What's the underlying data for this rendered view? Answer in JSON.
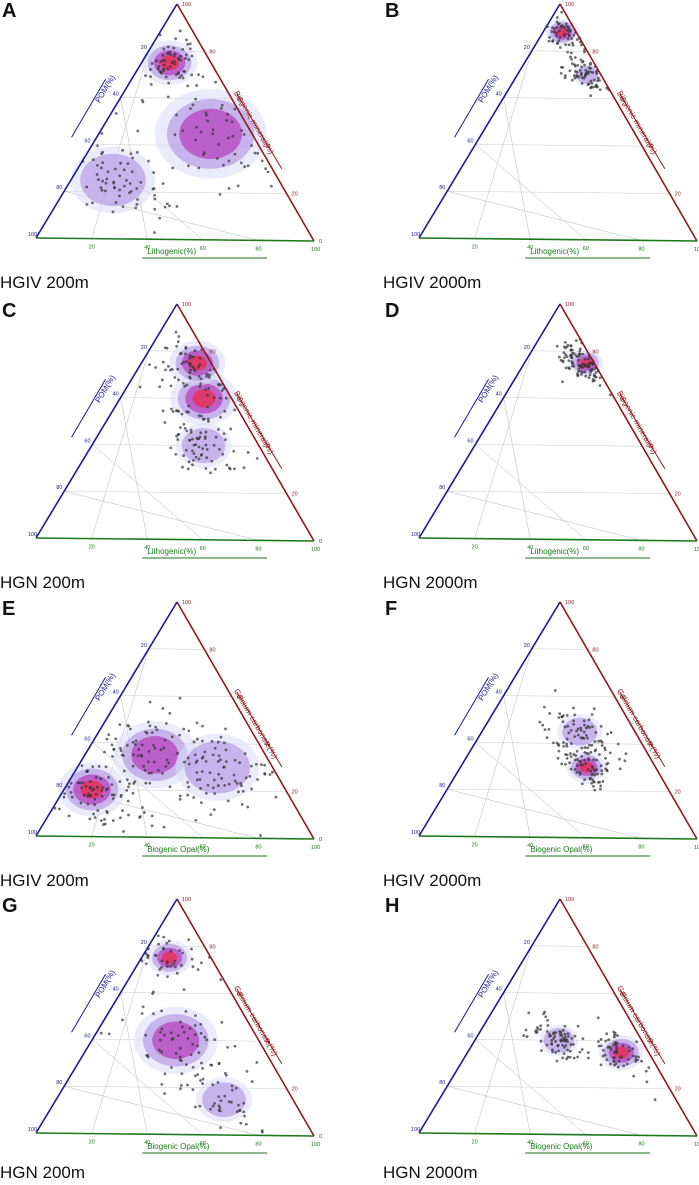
{
  "colors": {
    "left_axis": "#1a1a8c",
    "right_axis": "#8c1a1a",
    "bottom_axis": "#1a7a1a",
    "grid": "#c8c8c8",
    "density_low": "#d9dcf7",
    "density_mid": "#a987e0",
    "density_high": "#b01bb0",
    "density_peak": "#ff1a1a",
    "points": "#333333"
  },
  "tick_labels": {
    "right": [
      "100",
      "80",
      "60",
      "40",
      "20",
      "0"
    ],
    "left": [
      "20",
      "40",
      "60",
      "80",
      "100"
    ],
    "bottom": [
      "20",
      "40",
      "60",
      "80",
      "100"
    ]
  },
  "chart_data": [
    {
      "type": "scatter",
      "subtype": "ternary-density",
      "letter": "A",
      "title": "HGIV 200m",
      "axes": {
        "left": "POM(%)",
        "right": "Biogenic mineral(%)",
        "bottom": "Lithogenic(%)"
      },
      "density_clusters": [
        [
          0.45,
          0.15,
          0.4,
          0.2,
          3
        ],
        [
          0.75,
          0.15,
          0.1,
          0.1,
          4
        ],
        [
          0.25,
          0.6,
          0.15,
          0.15,
          2
        ]
      ],
      "seed": 11,
      "n_points": 220
    },
    {
      "type": "scatter",
      "subtype": "ternary-density",
      "letter": "B",
      "title": "HGIV 2000m",
      "axes": {
        "left": "POM(%)",
        "right": "Biogenic mineral(%)",
        "bottom": "Lithogenic(%)"
      },
      "density_clusters": [
        [
          0.88,
          0.05,
          0.07,
          0.06,
          4
        ],
        [
          0.7,
          0.05,
          0.25,
          0.05,
          2
        ]
      ],
      "seed": 23,
      "n_points": 140
    },
    {
      "type": "scatter",
      "subtype": "ternary-density",
      "letter": "C",
      "title": "HGN 200m",
      "axes": {
        "left": "POM(%)",
        "right": "Biogenic mineral(%)",
        "bottom": "Lithogenic(%)"
      },
      "density_clusters": [
        [
          0.6,
          0.1,
          0.3,
          0.12,
          4
        ],
        [
          0.75,
          0.05,
          0.2,
          0.1,
          4
        ],
        [
          0.4,
          0.2,
          0.4,
          0.1,
          2
        ]
      ],
      "seed": 37,
      "n_points": 180
    },
    {
      "type": "scatter",
      "subtype": "ternary-density",
      "letter": "D",
      "title": "HGN 2000m",
      "axes": {
        "left": "POM(%)",
        "right": "Biogenic mineral(%)",
        "bottom": "Lithogenic(%)"
      },
      "density_clusters": [
        [
          0.75,
          0.03,
          0.22,
          0.06,
          4
        ]
      ],
      "seed": 51,
      "n_points": 130
    },
    {
      "type": "scatter",
      "subtype": "ternary-density",
      "letter": "E",
      "title": "HGIV 200m",
      "axes": {
        "left": "POM(%)",
        "right": "Calcium carbonate(%)",
        "bottom": "Biogenic Opal(%)"
      },
      "density_clusters": [
        [
          0.2,
          0.7,
          0.1,
          0.12,
          4
        ],
        [
          0.35,
          0.4,
          0.25,
          0.15,
          3
        ],
        [
          0.3,
          0.2,
          0.5,
          0.15,
          2
        ]
      ],
      "seed": 63,
      "n_points": 260
    },
    {
      "type": "scatter",
      "subtype": "ternary-density",
      "letter": "F",
      "title": "HGIV 2000m",
      "axes": {
        "left": "POM(%)",
        "right": "Calcium carbonate(%)",
        "bottom": "Biogenic Opal(%)"
      },
      "density_clusters": [
        [
          0.3,
          0.25,
          0.45,
          0.07,
          4
        ],
        [
          0.45,
          0.2,
          0.35,
          0.08,
          2
        ]
      ],
      "seed": 79,
      "n_points": 150
    },
    {
      "type": "scatter",
      "subtype": "ternary-density",
      "letter": "G",
      "title": "HGN 200m",
      "axes": {
        "left": "POM(%)",
        "right": "Calcium carbonate(%)",
        "bottom": "Biogenic Opal(%)"
      },
      "density_clusters": [
        [
          0.75,
          0.15,
          0.1,
          0.08,
          4
        ],
        [
          0.4,
          0.3,
          0.3,
          0.15,
          3
        ],
        [
          0.15,
          0.25,
          0.6,
          0.1,
          2
        ]
      ],
      "seed": 91,
      "n_points": 160
    },
    {
      "type": "scatter",
      "subtype": "ternary-density",
      "letter": "H",
      "title": "HGN 2000m",
      "axes": {
        "left": "POM(%)",
        "right": "Calcium carbonate(%)",
        "bottom": "Biogenic Opal(%)"
      },
      "density_clusters": [
        [
          0.35,
          0.1,
          0.55,
          0.08,
          4
        ],
        [
          0.4,
          0.3,
          0.3,
          0.07,
          2
        ]
      ],
      "seed": 103,
      "n_points": 150
    }
  ]
}
